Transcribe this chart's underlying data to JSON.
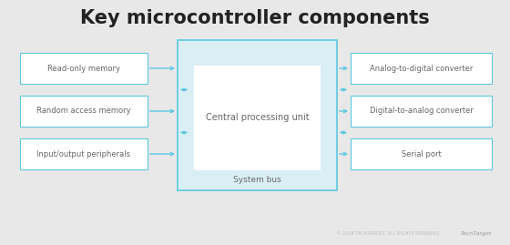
{
  "title": "Key microcontroller components",
  "title_fontsize": 15,
  "title_fontweight": "bold",
  "title_color": "#222222",
  "background_color": "#e8e8e8",
  "box_bg_white": "#ffffff",
  "box_border_color": "#5bc8e0",
  "system_bus_bg": "#daeef5",
  "system_bus_border": "#5bc8e0",
  "text_color": "#666666",
  "arrow_color": "#5bc8e0",
  "left_boxes": [
    {
      "label": "Read-only memory"
    },
    {
      "label": "Random access memory"
    },
    {
      "label": "Input/output peripherals"
    }
  ],
  "right_boxes": [
    {
      "label": "Analog-to-digital converter"
    },
    {
      "label": "Digital-to-analog converter"
    },
    {
      "label": "Serial port"
    }
  ],
  "cpu_label": "Central processing unit",
  "sysbus_label": "System bus",
  "footer_text": "© 2024 TECHTARGET, ALL RIGHTS RESERVED.",
  "footer_brand": "TechTarget"
}
